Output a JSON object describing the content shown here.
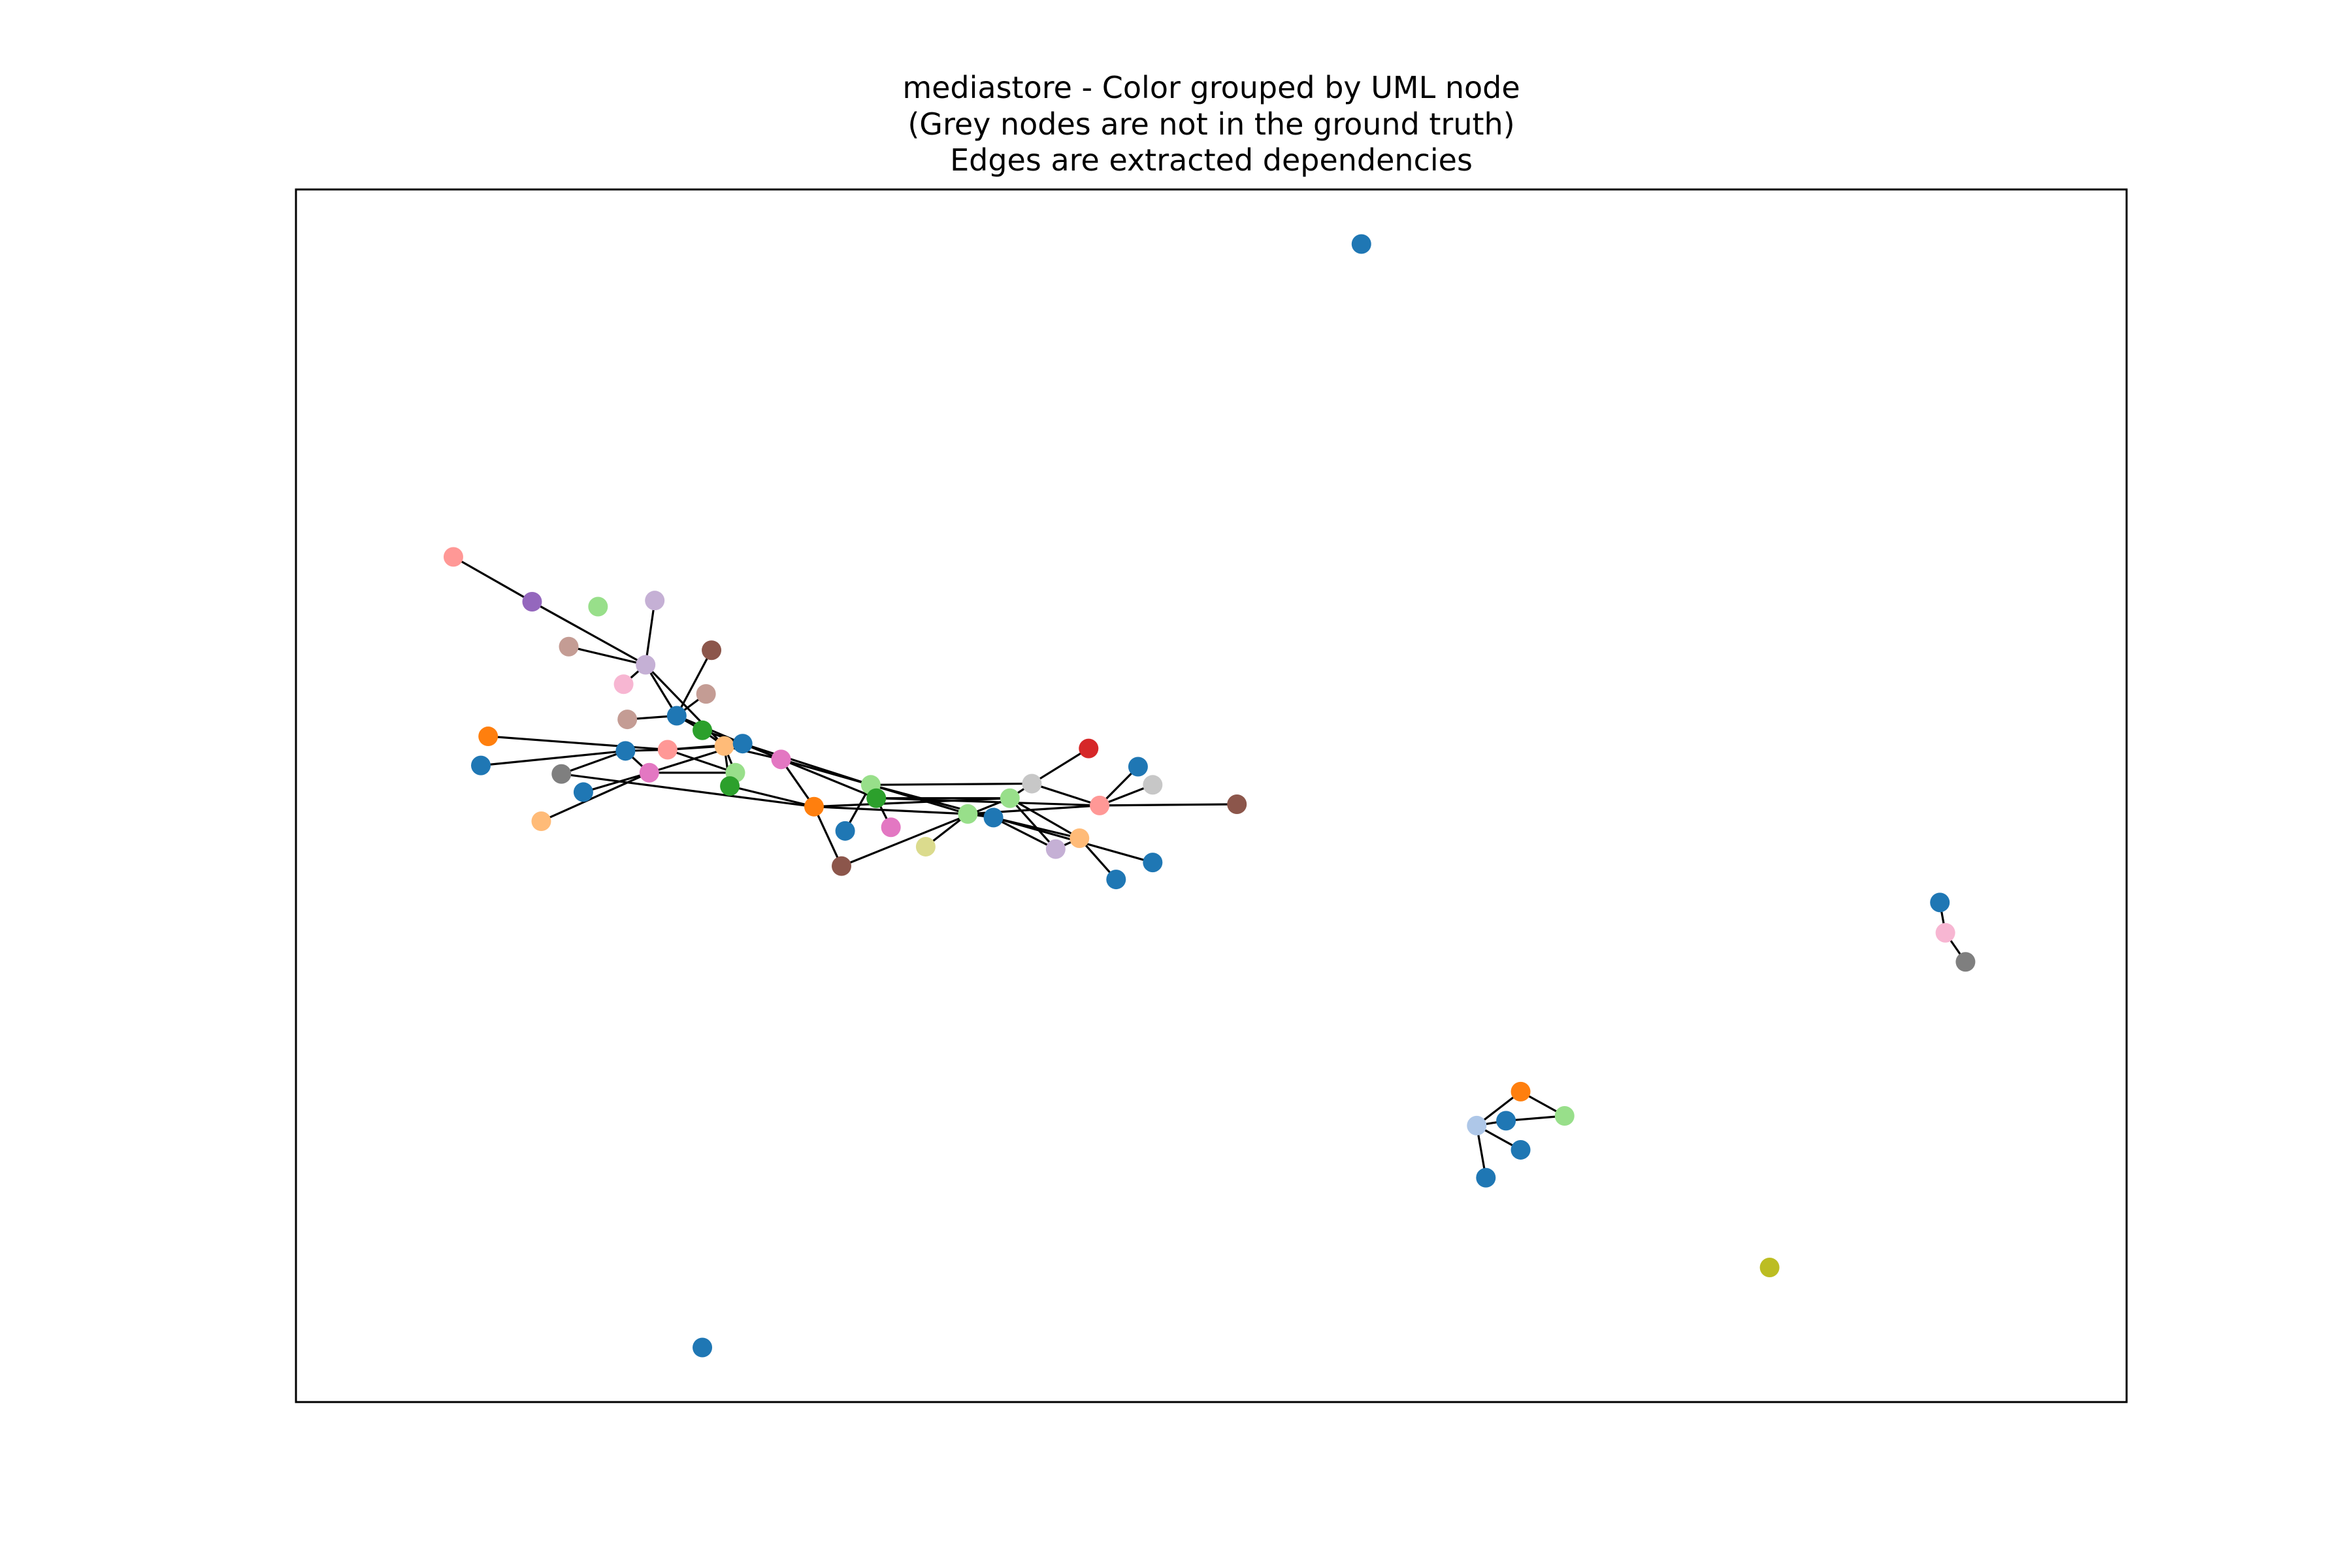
{
  "figure": {
    "title_lines": [
      "mediastore - Color grouped by UML node",
      "(Grey nodes are not in the ground truth)",
      "Edges are extracted dependencies"
    ]
  },
  "chart_data": {
    "type": "network-graph",
    "title": "mediastore - Color grouped by UML node\n(Grey nodes are not in the ground truth)\nEdges are extracted dependencies",
    "xlim": [
      0,
      1
    ],
    "ylim": [
      0,
      1
    ],
    "axes_ticks": false,
    "node_note": "nodes have no visible labels; colors encode UML-node groups",
    "nodes": [
      {
        "id": "n1",
        "x": 0.086,
        "y": 0.697,
        "color": "#ff9896"
      },
      {
        "id": "n2",
        "x": 0.129,
        "y": 0.66,
        "color": "#9467bd"
      },
      {
        "id": "n3",
        "x": 0.165,
        "y": 0.656,
        "color": "#98df8a"
      },
      {
        "id": "n4",
        "x": 0.196,
        "y": 0.661,
        "color": "#c5b0d5"
      },
      {
        "id": "n5",
        "x": 0.149,
        "y": 0.623,
        "color": "#c49c94"
      },
      {
        "id": "n6",
        "x": 0.191,
        "y": 0.608,
        "color": "#c5b0d5"
      },
      {
        "id": "n7",
        "x": 0.227,
        "y": 0.62,
        "color": "#8c564b"
      },
      {
        "id": "n8",
        "x": 0.179,
        "y": 0.592,
        "color": "#f7b6d2"
      },
      {
        "id": "n9",
        "x": 0.224,
        "y": 0.584,
        "color": "#c49c94"
      },
      {
        "id": "n10",
        "x": 0.181,
        "y": 0.563,
        "color": "#c49c94"
      },
      {
        "id": "n11",
        "x": 0.208,
        "y": 0.566,
        "color": "#1f77b4"
      },
      {
        "id": "n12",
        "x": 0.222,
        "y": 0.554,
        "color": "#2ca02c"
      },
      {
        "id": "n13",
        "x": 0.105,
        "y": 0.549,
        "color": "#ff7f0e"
      },
      {
        "id": "n14",
        "x": 0.18,
        "y": 0.537,
        "color": "#1f77b4"
      },
      {
        "id": "n15",
        "x": 0.203,
        "y": 0.538,
        "color": "#ff9896"
      },
      {
        "id": "n16",
        "x": 0.234,
        "y": 0.541,
        "color": "#ffbb78"
      },
      {
        "id": "n17",
        "x": 0.244,
        "y": 0.543,
        "color": "#1f77b4"
      },
      {
        "id": "n18",
        "x": 0.101,
        "y": 0.525,
        "color": "#1f77b4"
      },
      {
        "id": "n19",
        "x": 0.145,
        "y": 0.518,
        "color": "#7f7f7f"
      },
      {
        "id": "n20",
        "x": 0.193,
        "y": 0.519,
        "color": "#e377c2"
      },
      {
        "id": "n21",
        "x": 0.24,
        "y": 0.519,
        "color": "#98df8a"
      },
      {
        "id": "n22",
        "x": 0.265,
        "y": 0.53,
        "color": "#e377c2"
      },
      {
        "id": "n23",
        "x": 0.237,
        "y": 0.508,
        "color": "#2ca02c"
      },
      {
        "id": "n24",
        "x": 0.157,
        "y": 0.503,
        "color": "#1f77b4"
      },
      {
        "id": "n25",
        "x": 0.134,
        "y": 0.479,
        "color": "#ffbb78"
      },
      {
        "id": "n26",
        "x": 0.283,
        "y": 0.491,
        "color": "#ff7f0e"
      },
      {
        "id": "n27",
        "x": 0.314,
        "y": 0.509,
        "color": "#98df8a"
      },
      {
        "id": "n28",
        "x": 0.317,
        "y": 0.498,
        "color": "#2ca02c"
      },
      {
        "id": "n29",
        "x": 0.3,
        "y": 0.471,
        "color": "#1f77b4"
      },
      {
        "id": "n30",
        "x": 0.325,
        "y": 0.474,
        "color": "#e377c2"
      },
      {
        "id": "n31",
        "x": 0.298,
        "y": 0.442,
        "color": "#8c564b"
      },
      {
        "id": "n32",
        "x": 0.344,
        "y": 0.458,
        "color": "#dbdb8d"
      },
      {
        "id": "n33",
        "x": 0.367,
        "y": 0.485,
        "color": "#98df8a"
      },
      {
        "id": "n34",
        "x": 0.39,
        "y": 0.498,
        "color": "#98df8a"
      },
      {
        "id": "n35",
        "x": 0.381,
        "y": 0.482,
        "color": "#1f77b4"
      },
      {
        "id": "n36",
        "x": 0.402,
        "y": 0.51,
        "color": "#c7c7c7"
      },
      {
        "id": "n37",
        "x": 0.433,
        "y": 0.539,
        "color": "#d62728"
      },
      {
        "id": "n38",
        "x": 0.46,
        "y": 0.524,
        "color": "#1f77b4"
      },
      {
        "id": "n39",
        "x": 0.468,
        "y": 0.509,
        "color": "#c7c7c7"
      },
      {
        "id": "n40",
        "x": 0.439,
        "y": 0.492,
        "color": "#ff9896"
      },
      {
        "id": "n41",
        "x": 0.428,
        "y": 0.465,
        "color": "#ffbb78"
      },
      {
        "id": "n42",
        "x": 0.415,
        "y": 0.456,
        "color": "#c5b0d5"
      },
      {
        "id": "n43",
        "x": 0.448,
        "y": 0.431,
        "color": "#1f77b4"
      },
      {
        "id": "n44",
        "x": 0.468,
        "y": 0.445,
        "color": "#1f77b4"
      },
      {
        "id": "n45",
        "x": 0.514,
        "y": 0.493,
        "color": "#8c564b"
      },
      {
        "id": "n46",
        "x": 0.582,
        "y": 0.955,
        "color": "#1f77b4"
      },
      {
        "id": "n47",
        "x": 0.222,
        "y": 0.045,
        "color": "#1f77b4"
      },
      {
        "id": "n48",
        "x": 0.805,
        "y": 0.111,
        "color": "#bcbd22"
      },
      {
        "id": "n49",
        "x": 0.669,
        "y": 0.256,
        "color": "#ff7f0e"
      },
      {
        "id": "n50",
        "x": 0.645,
        "y": 0.228,
        "color": "#aec7e8"
      },
      {
        "id": "n51",
        "x": 0.661,
        "y": 0.232,
        "color": "#1f77b4"
      },
      {
        "id": "n52",
        "x": 0.693,
        "y": 0.236,
        "color": "#98df8a"
      },
      {
        "id": "n53",
        "x": 0.669,
        "y": 0.208,
        "color": "#1f77b4"
      },
      {
        "id": "n54",
        "x": 0.65,
        "y": 0.185,
        "color": "#1f77b4"
      },
      {
        "id": "n55",
        "x": 0.898,
        "y": 0.412,
        "color": "#1f77b4"
      },
      {
        "id": "n56",
        "x": 0.901,
        "y": 0.387,
        "color": "#f7b6d2"
      },
      {
        "id": "n57",
        "x": 0.912,
        "y": 0.363,
        "color": "#7f7f7f"
      }
    ],
    "edges": [
      [
        "n1",
        "n2"
      ],
      [
        "n2",
        "n6"
      ],
      [
        "n4",
        "n6"
      ],
      [
        "n5",
        "n6"
      ],
      [
        "n8",
        "n6"
      ],
      [
        "n6",
        "n11"
      ],
      [
        "n6",
        "n16"
      ],
      [
        "n7",
        "n11"
      ],
      [
        "n9",
        "n11"
      ],
      [
        "n10",
        "n11"
      ],
      [
        "n11",
        "n12"
      ],
      [
        "n11",
        "n17"
      ],
      [
        "n13",
        "n15"
      ],
      [
        "n18",
        "n14"
      ],
      [
        "n14",
        "n15"
      ],
      [
        "n14",
        "n20"
      ],
      [
        "n15",
        "n21"
      ],
      [
        "n15",
        "n16"
      ],
      [
        "n15",
        "n17"
      ],
      [
        "n16",
        "n21"
      ],
      [
        "n16",
        "n23"
      ],
      [
        "n16",
        "n22"
      ],
      [
        "n12",
        "n17"
      ],
      [
        "n12",
        "n16"
      ],
      [
        "n19",
        "n14"
      ],
      [
        "n19",
        "n26"
      ],
      [
        "n20",
        "n21"
      ],
      [
        "n20",
        "n17"
      ],
      [
        "n24",
        "n20"
      ],
      [
        "n25",
        "n20"
      ],
      [
        "n17",
        "n27"
      ],
      [
        "n17",
        "n28"
      ],
      [
        "n22",
        "n27"
      ],
      [
        "n22",
        "n26"
      ],
      [
        "n21",
        "n23"
      ],
      [
        "n23",
        "n26"
      ],
      [
        "n26",
        "n31"
      ],
      [
        "n26",
        "n33"
      ],
      [
        "n26",
        "n34"
      ],
      [
        "n27",
        "n29"
      ],
      [
        "n27",
        "n33"
      ],
      [
        "n27",
        "n36"
      ],
      [
        "n27",
        "n35"
      ],
      [
        "n28",
        "n34"
      ],
      [
        "n28",
        "n30"
      ],
      [
        "n28",
        "n40"
      ],
      [
        "n31",
        "n34"
      ],
      [
        "n32",
        "n33"
      ],
      [
        "n33",
        "n35"
      ],
      [
        "n33",
        "n40"
      ],
      [
        "n34",
        "n36"
      ],
      [
        "n34",
        "n42"
      ],
      [
        "n35",
        "n41"
      ],
      [
        "n35",
        "n42"
      ],
      [
        "n35",
        "n44"
      ],
      [
        "n34",
        "n41"
      ],
      [
        "n36",
        "n37"
      ],
      [
        "n36",
        "n40"
      ],
      [
        "n40",
        "n38"
      ],
      [
        "n40",
        "n45"
      ],
      [
        "n41",
        "n42"
      ],
      [
        "n41",
        "n43"
      ],
      [
        "n39",
        "n40"
      ],
      [
        "n50",
        "n49"
      ],
      [
        "n50",
        "n51"
      ],
      [
        "n50",
        "n53"
      ],
      [
        "n50",
        "n54"
      ],
      [
        "n51",
        "n52"
      ],
      [
        "n49",
        "n52"
      ],
      [
        "n55",
        "n56"
      ],
      [
        "n56",
        "n57"
      ]
    ]
  }
}
